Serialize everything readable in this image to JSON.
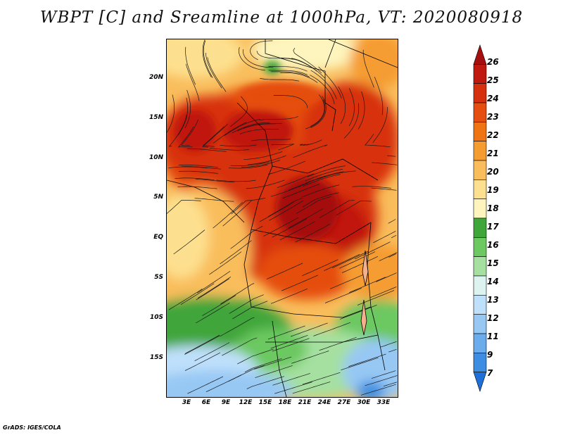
{
  "title": "WBPT [C] and Sreamline at 1000hPa, VT: 2020080918",
  "footer": "GrADS: IGES/COLA",
  "lat_labels": [
    "20N",
    "15N",
    "10N",
    "5N",
    "EQ",
    "5S",
    "10S",
    "15S"
  ],
  "lon_labels": [
    "3E",
    "6E",
    "9E",
    "12E",
    "15E",
    "18E",
    "21E",
    "24E",
    "27E",
    "30E",
    "33E"
  ],
  "colorbar": {
    "labels": [
      "26",
      "25",
      "24",
      "23",
      "22",
      "21",
      "20",
      "19",
      "18",
      "17",
      "16",
      "15",
      "14",
      "13",
      "12",
      "11",
      "9",
      "7"
    ],
    "colors": [
      "#a50f0f",
      "#c0190f",
      "#d7300f",
      "#e54e10",
      "#f07412",
      "#f59c30",
      "#f9bd5c",
      "#fde08f",
      "#fdf5bd",
      "#3fa63a",
      "#6cc860",
      "#a5e0a0",
      "#dcf3f0",
      "#bfe0fb",
      "#97c8f4",
      "#6aacec",
      "#3d8ee2",
      "#1e70d8"
    ]
  }
}
